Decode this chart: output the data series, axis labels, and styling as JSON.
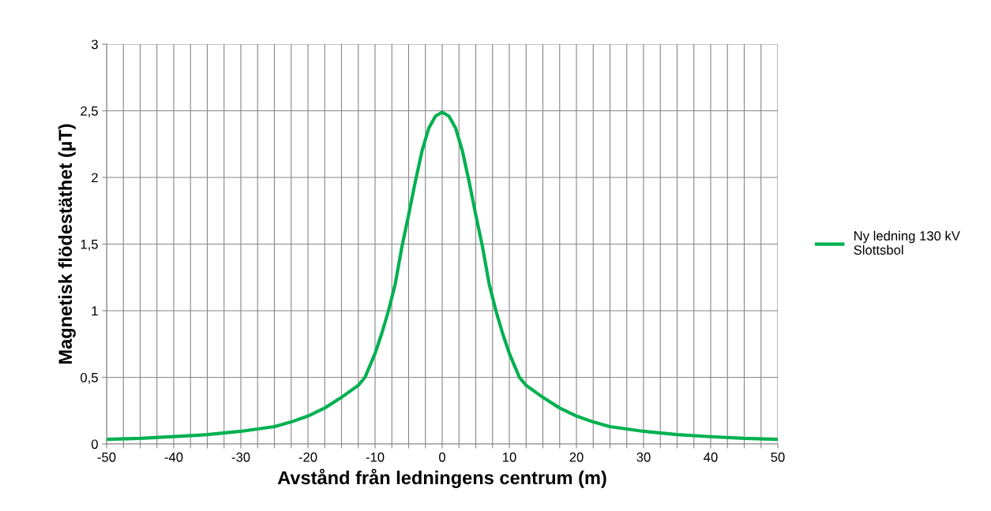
{
  "chart_data": {
    "type": "line",
    "xlabel": "Avstånd från ledningens centrum (m)",
    "ylabel": "Magnetisk flödestäthet (µT)",
    "x": [
      -50,
      -45,
      -40,
      -35,
      -30,
      -25,
      -22.5,
      -20,
      -17.5,
      -15,
      -12.5,
      -11.5,
      -10,
      -9,
      -8,
      -7,
      -6,
      -5,
      -4,
      -3,
      -2,
      -1,
      0,
      1,
      2,
      3,
      4,
      5,
      6,
      7,
      8,
      9,
      10,
      11.5,
      12.5,
      15,
      17.5,
      20,
      22.5,
      25,
      30,
      35,
      40,
      45,
      50
    ],
    "series": [
      {
        "name": "Ny ledning 130 kV\nSlottsbol",
        "color": "#00b050",
        "values": [
          0.035,
          0.042,
          0.055,
          0.07,
          0.095,
          0.13,
          0.165,
          0.21,
          0.27,
          0.35,
          0.44,
          0.5,
          0.68,
          0.83,
          1.0,
          1.2,
          1.48,
          1.72,
          1.97,
          2.2,
          2.37,
          2.46,
          2.49,
          2.46,
          2.37,
          2.2,
          1.97,
          1.72,
          1.48,
          1.2,
          1.0,
          0.83,
          0.68,
          0.5,
          0.44,
          0.35,
          0.27,
          0.21,
          0.165,
          0.13,
          0.095,
          0.07,
          0.055,
          0.042,
          0.035
        ]
      }
    ],
    "xlim": [
      -50,
      50
    ],
    "xticks": [
      -50,
      {
        "value": -47.5,
        "label": null
      },
      {
        "value": -45,
        "label": null
      },
      {
        "value": -42.5,
        "label": null
      },
      -40,
      {
        "value": -37.5,
        "label": null
      },
      {
        "value": -35,
        "label": null
      },
      {
        "value": -32.5,
        "label": null
      },
      -30,
      {
        "value": -27.5,
        "label": null
      },
      {
        "value": -25,
        "label": null
      },
      {
        "value": -22.5,
        "label": null
      },
      -20,
      {
        "value": -17.5,
        "label": null
      },
      {
        "value": -15,
        "label": null
      },
      {
        "value": -12.5,
        "label": null
      },
      -10,
      {
        "value": -7.5,
        "label": null
      },
      {
        "value": -5,
        "label": null
      },
      {
        "value": -2.5,
        "label": null
      },
      0,
      {
        "value": 2.5,
        "label": null
      },
      {
        "value": 5,
        "label": null
      },
      {
        "value": 7.5,
        "label": null
      },
      10,
      {
        "value": 12.5,
        "label": null
      },
      {
        "value": 15,
        "label": null
      },
      {
        "value": 17.5,
        "label": null
      },
      20,
      {
        "value": 22.5,
        "label": null
      },
      {
        "value": 25,
        "label": null
      },
      {
        "value": 27.5,
        "label": null
      },
      30,
      {
        "value": 32.5,
        "label": null
      },
      {
        "value": 35,
        "label": null
      },
      {
        "value": 37.5,
        "label": null
      },
      40,
      {
        "value": 42.5,
        "label": null
      },
      {
        "value": 45,
        "label": null
      },
      {
        "value": 47.5,
        "label": null
      },
      50
    ],
    "ylim": [
      0,
      3
    ],
    "yticks": [
      0,
      {
        "value": 0.5,
        "label": "0,5"
      },
      1,
      {
        "value": 1.5,
        "label": "1,5"
      },
      2,
      {
        "value": 2.5,
        "label": "2,5"
      },
      3
    ],
    "grid": true,
    "legend": "right",
    "marker": "none",
    "line_style": "solid"
  }
}
